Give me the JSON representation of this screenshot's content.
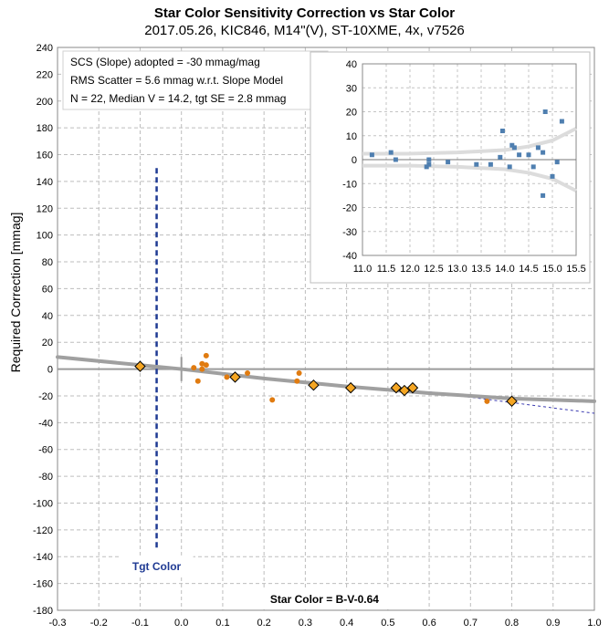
{
  "chart_data": [
    {
      "type": "scatter",
      "title": "Star Color Sensitivity Correction vs Star Color",
      "subtitle": "2017.05.26, KIC846, M14\"(V), ST-10XME, 4x, v7526",
      "xlabel": "Star Color = B-V-0.64",
      "ylabel": "Required Correction [mmag]",
      "xlim": [
        -0.3,
        1.0
      ],
      "ylim": [
        -180,
        240
      ],
      "xticks": [
        "-0.3",
        "-0.2",
        "-0.1",
        "0.0",
        "0.1",
        "0.2",
        "0.3",
        "0.4",
        "0.5",
        "0.6",
        "0.7",
        "0.8",
        "0.9",
        "1.0"
      ],
      "yticks": [
        "240",
        "220",
        "200",
        "180",
        "160",
        "140",
        "120",
        "100",
        "80",
        "60",
        "40",
        "20",
        "0",
        "-20",
        "-40",
        "-60",
        "-80",
        "-100",
        "-120",
        "-140",
        "-160",
        "-180"
      ],
      "grid": true,
      "annotations": [
        "SCS (Slope) adopted  =  -30 mmag/mag",
        "RMS Scatter = 5.6 mmag w.r.t. Slope Model",
        "N = 22,  Median V = 14.2, tgt SE = 2.8 mmag"
      ],
      "target_label": "Tgt Color",
      "target_color_x": -0.06,
      "colors": {
        "points": "#e07b10",
        "diamonds": "#f5a623",
        "model": "#a0a0a0",
        "target": "#1f3a93",
        "extension": "#3a3ab0"
      },
      "model_curve": {
        "x": [
          -0.3,
          0.0,
          0.2,
          0.4,
          0.6,
          0.8,
          1.0
        ],
        "y": [
          9,
          0,
          -7,
          -13,
          -18,
          -22,
          -24
        ]
      },
      "extension_line": {
        "x": [
          0.6,
          1.0
        ],
        "y": [
          -17,
          -33
        ]
      },
      "series_points": [
        {
          "x": 0.03,
          "y": 1
        },
        {
          "x": 0.04,
          "y": -9
        },
        {
          "x": 0.05,
          "y": 4
        },
        {
          "x": 0.05,
          "y": 0
        },
        {
          "x": 0.06,
          "y": 3
        },
        {
          "x": 0.06,
          "y": 10
        },
        {
          "x": 0.11,
          "y": -6
        },
        {
          "x": 0.16,
          "y": -3
        },
        {
          "x": 0.22,
          "y": -23
        },
        {
          "x": 0.28,
          "y": -9
        },
        {
          "x": 0.285,
          "y": -3
        },
        {
          "x": 0.74,
          "y": -24
        }
      ],
      "series_diamonds": [
        {
          "x": -0.1,
          "y": 2
        },
        {
          "x": 0.13,
          "y": -6
        },
        {
          "x": 0.32,
          "y": -12
        },
        {
          "x": 0.41,
          "y": -14
        },
        {
          "x": 0.52,
          "y": -14
        },
        {
          "x": 0.54,
          "y": -16
        },
        {
          "x": 0.56,
          "y": -14
        },
        {
          "x": 0.8,
          "y": -24
        }
      ]
    },
    {
      "type": "scatter",
      "xlim": [
        11.0,
        15.5
      ],
      "ylim": [
        -40,
        40
      ],
      "xticks": [
        "11.0",
        "11.5",
        "12.0",
        "12.5",
        "13.0",
        "13.5",
        "14.0",
        "14.5",
        "15.0",
        "15.5"
      ],
      "yticks": [
        "40",
        "30",
        "20",
        "10",
        "0",
        "-10",
        "-20",
        "-30",
        "-40"
      ],
      "grid": true,
      "colors": {
        "points": "#4f7fb0",
        "envelope": "#dcdcdc"
      },
      "points": [
        {
          "x": 11.2,
          "y": 2
        },
        {
          "x": 11.6,
          "y": 3
        },
        {
          "x": 11.7,
          "y": 0
        },
        {
          "x": 12.35,
          "y": -3
        },
        {
          "x": 12.4,
          "y": -2
        },
        {
          "x": 12.4,
          "y": 0
        },
        {
          "x": 12.8,
          "y": -1
        },
        {
          "x": 13.4,
          "y": -2
        },
        {
          "x": 13.7,
          "y": -2
        },
        {
          "x": 13.9,
          "y": 1
        },
        {
          "x": 13.95,
          "y": 12
        },
        {
          "x": 14.1,
          "y": -3
        },
        {
          "x": 14.15,
          "y": 6
        },
        {
          "x": 14.2,
          "y": 5
        },
        {
          "x": 14.3,
          "y": 2
        },
        {
          "x": 14.5,
          "y": 2
        },
        {
          "x": 14.6,
          "y": -3
        },
        {
          "x": 14.7,
          "y": 5
        },
        {
          "x": 14.8,
          "y": 3
        },
        {
          "x": 14.85,
          "y": 20
        },
        {
          "x": 14.8,
          "y": -15
        },
        {
          "x": 15.0,
          "y": -7
        },
        {
          "x": 15.1,
          "y": -1
        },
        {
          "x": 15.2,
          "y": 16
        }
      ],
      "envelope_x": [
        11.0,
        12.0,
        13.0,
        14.0,
        14.5,
        15.0,
        15.5
      ],
      "envelope_y": [
        2.5,
        2.5,
        3,
        4,
        5.5,
        8,
        13
      ]
    }
  ]
}
